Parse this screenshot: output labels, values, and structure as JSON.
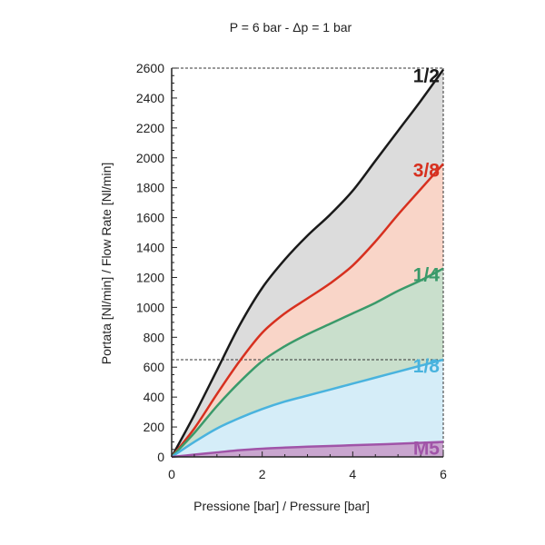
{
  "chart_data": {
    "type": "area",
    "title": "P = 6 bar - Δp = 1 bar",
    "xlabel": "Pressione [bar] / Pressure [bar]",
    "ylabel": "Portata [Nl/min] / Flow Rate [Nl/min]",
    "xlim": [
      0,
      6
    ],
    "ylim": [
      0,
      2600
    ],
    "x_ticks": [
      0,
      2,
      4,
      6
    ],
    "y_ticks": [
      0,
      200,
      400,
      600,
      800,
      1000,
      1200,
      1400,
      1600,
      1800,
      2000,
      2200,
      2400,
      2600
    ],
    "grid": false,
    "reference_lines": [
      2600,
      650
    ],
    "x": [
      0,
      0.5,
      1,
      1.5,
      2,
      2.5,
      3,
      3.5,
      4,
      4.5,
      5,
      5.5,
      6
    ],
    "series": [
      {
        "name": "1/2",
        "color": "#1a1a1a",
        "fill": "#dcdcdc",
        "values": [
          0,
          280,
          580,
          880,
          1130,
          1320,
          1480,
          1620,
          1780,
          1980,
          2180,
          2380,
          2590
        ]
      },
      {
        "name": "3/8",
        "color": "#d7301f",
        "fill": "#f9d5c8",
        "values": [
          0,
          190,
          420,
          640,
          830,
          960,
          1060,
          1160,
          1280,
          1440,
          1620,
          1790,
          1960
        ]
      },
      {
        "name": "1/4",
        "color": "#3a9a6a",
        "fill": "#c9dfcc",
        "values": [
          0,
          160,
          340,
          500,
          640,
          740,
          820,
          890,
          960,
          1030,
          1110,
          1180,
          1260
        ]
      },
      {
        "name": "1/8",
        "color": "#49b3de",
        "fill": "#d5edf8",
        "values": [
          0,
          100,
          190,
          260,
          320,
          370,
          410,
          450,
          490,
          530,
          570,
          610,
          650
        ]
      },
      {
        "name": "M5",
        "color": "#a054a8",
        "fill": "#c9a6cf",
        "values": [
          0,
          15,
          30,
          45,
          55,
          62,
          68,
          73,
          78,
          83,
          88,
          94,
          100
        ]
      }
    ]
  }
}
